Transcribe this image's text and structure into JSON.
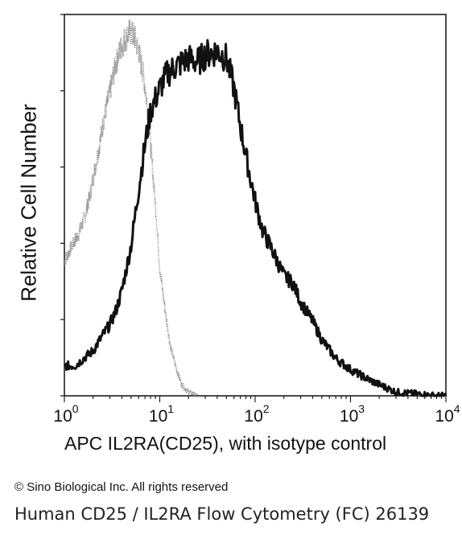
{
  "chart_data": {
    "type": "line",
    "xlabel": "APC IL2RA(CD25), with isotype control",
    "ylabel": "Relative Cell Number",
    "x_scale": "log",
    "xlim": [
      1,
      10000
    ],
    "ylim": [
      0,
      1
    ],
    "x_ticks": [
      {
        "base": "10",
        "exp": "0"
      },
      {
        "base": "10",
        "exp": "1"
      },
      {
        "base": "10",
        "exp": "2"
      },
      {
        "base": "10",
        "exp": "3"
      },
      {
        "base": "10",
        "exp": "4"
      }
    ],
    "series": [
      {
        "style": "dotted-gray",
        "color": "#9a9a9a",
        "x": [
          1.0,
          1.2,
          1.4,
          1.6,
          1.8,
          2.0,
          2.3,
          2.6,
          3.0,
          3.4,
          3.8,
          4.3,
          4.8,
          5.4,
          6.0,
          6.8,
          7.5,
          8.3,
          9.2,
          10,
          11.5,
          13,
          15,
          17,
          20,
          25
        ],
        "y": [
          0.36,
          0.4,
          0.43,
          0.47,
          0.52,
          0.58,
          0.66,
          0.74,
          0.81,
          0.88,
          0.92,
          0.95,
          0.97,
          0.96,
          0.92,
          0.85,
          0.76,
          0.62,
          0.48,
          0.34,
          0.22,
          0.13,
          0.07,
          0.03,
          0.01,
          0.0
        ]
      },
      {
        "style": "solid-black",
        "color": "#111111",
        "x": [
          1.0,
          1.3,
          1.6,
          2.0,
          2.5,
          3.0,
          3.5,
          4.0,
          5.0,
          6.0,
          7.0,
          8.0,
          10,
          12,
          15,
          20,
          25,
          30,
          40,
          50,
          60,
          70,
          80,
          100,
          120,
          150,
          200,
          250,
          300,
          400,
          500,
          700,
          1000,
          1500,
          2000,
          3000,
          5000,
          8000,
          10000
        ],
        "y": [
          0.08,
          0.08,
          0.1,
          0.12,
          0.16,
          0.19,
          0.23,
          0.28,
          0.4,
          0.55,
          0.67,
          0.76,
          0.82,
          0.86,
          0.88,
          0.9,
          0.89,
          0.91,
          0.92,
          0.9,
          0.82,
          0.72,
          0.64,
          0.52,
          0.44,
          0.39,
          0.32,
          0.3,
          0.25,
          0.2,
          0.15,
          0.1,
          0.07,
          0.045,
          0.03,
          0.01,
          0.005,
          0.0,
          0.0
        ]
      }
    ]
  },
  "text": {
    "copyright": "© Sino Biological Inc. All rights reserved",
    "caption": "Human CD25 / IL2RA Flow Cytometry (FC) 26139"
  }
}
